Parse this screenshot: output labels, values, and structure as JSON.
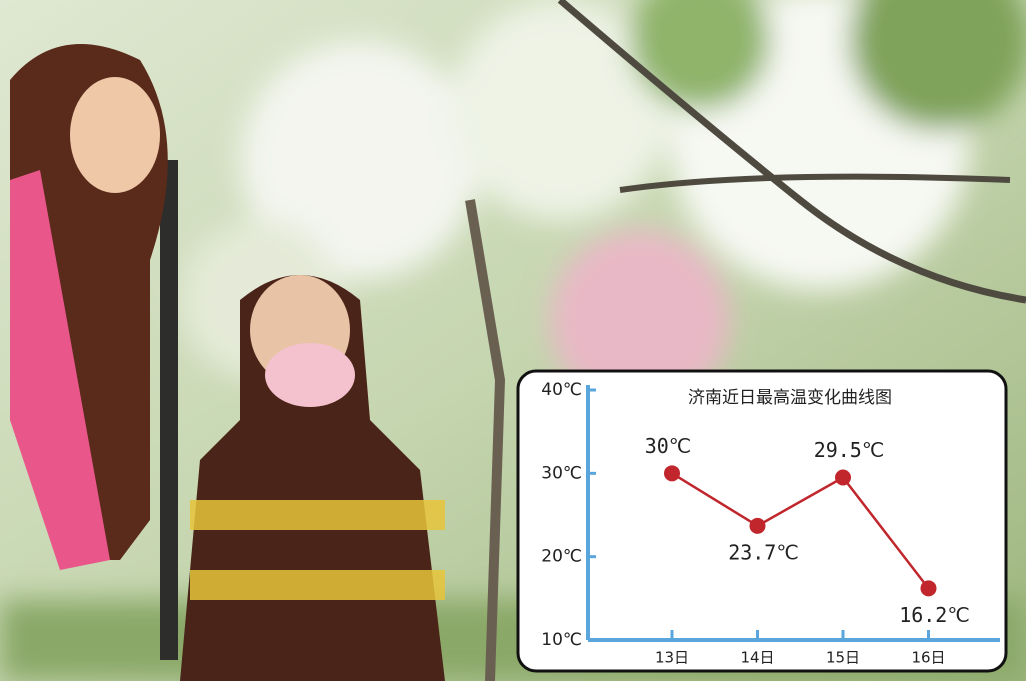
{
  "chart_data": {
    "type": "line",
    "title": "济南近日最高温变化曲线图",
    "categories": [
      "13日",
      "14日",
      "15日",
      "16日"
    ],
    "series": [
      {
        "color": "#c0262c",
        "values": [
          30,
          23.7,
          29.5,
          16.2
        ],
        "value_labels": [
          "30℃",
          "23.7℃",
          "29.5℃",
          "16.2℃"
        ]
      }
    ],
    "ylim": [
      10,
      40
    ],
    "yticks": [
      {
        "value": 10,
        "label": "10℃"
      },
      {
        "value": 20,
        "label": "20℃"
      },
      {
        "value": 30,
        "label": "30℃"
      },
      {
        "value": 40,
        "label": "40℃"
      }
    ],
    "axis_color": "#5aa5dc"
  }
}
